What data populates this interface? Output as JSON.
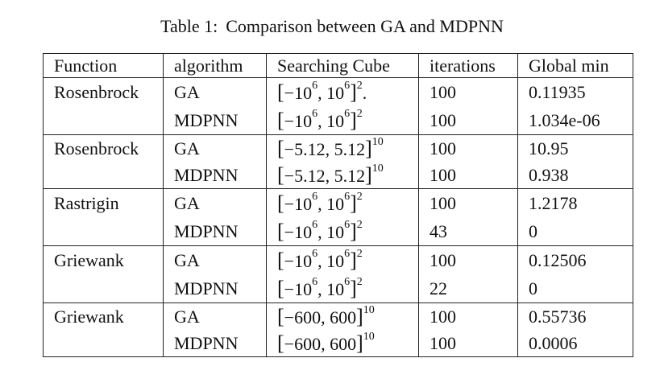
{
  "caption": {
    "number": "Table 1:",
    "text": "Comparison between GA and MDPNN"
  },
  "headers": [
    "Function",
    "algorithm",
    "Searching Cube",
    "iterations",
    "Global min"
  ],
  "rows": [
    {
      "function": "Rosenbrock",
      "algorithm": "GA",
      "cube_base": "−10",
      "cube_base_exp": "6",
      "cube_hi": "10",
      "cube_hi_exp": "6",
      "cube_power": "2",
      "cube_trail": ".",
      "iterations": "100",
      "global_min": "0.11935"
    },
    {
      "function": "",
      "algorithm": "MDPNN",
      "cube_base": "−10",
      "cube_base_exp": "6",
      "cube_hi": "10",
      "cube_hi_exp": "6",
      "cube_power": "2",
      "cube_trail": "",
      "iterations": "100",
      "global_min": "1.034e-06"
    },
    {
      "function": "Rosenbrock",
      "algorithm": "GA",
      "cube_interval": "−5.12, 5.12",
      "cube_power": "10",
      "iterations": "100",
      "global_min": "10.95"
    },
    {
      "function": "",
      "algorithm": "MDPNN",
      "cube_interval": "−5.12, 5.12",
      "cube_power": "10",
      "iterations": "100",
      "global_min": "0.938"
    },
    {
      "function": "Rastrigin",
      "algorithm": "GA",
      "cube_base": "−10",
      "cube_base_exp": "6",
      "cube_hi": "10",
      "cube_hi_exp": "6",
      "cube_power": "2",
      "cube_trail": "",
      "iterations": "100",
      "global_min": "1.2178"
    },
    {
      "function": "",
      "algorithm": "MDPNN",
      "cube_base": "−10",
      "cube_base_exp": "6",
      "cube_hi": "10",
      "cube_hi_exp": "6",
      "cube_power": "2",
      "cube_trail": "",
      "iterations": "43",
      "global_min": "0"
    },
    {
      "function": "Griewank",
      "algorithm": "GA",
      "cube_base": "−10",
      "cube_base_exp": "6",
      "cube_hi": "10",
      "cube_hi_exp": "6",
      "cube_power": "2",
      "cube_trail": "",
      "iterations": "100",
      "global_min": "0.12506"
    },
    {
      "function": "",
      "algorithm": "MDPNN",
      "cube_base": "−10",
      "cube_base_exp": "6",
      "cube_hi": "10",
      "cube_hi_exp": "6",
      "cube_power": "2",
      "cube_trail": "",
      "iterations": "22",
      "global_min": "0"
    },
    {
      "function": "Griewank",
      "algorithm": "GA",
      "cube_interval": "−600, 600",
      "cube_power": "10",
      "iterations": "100",
      "global_min": "0.55736"
    },
    {
      "function": "",
      "algorithm": "MDPNN",
      "cube_interval": "−600, 600",
      "cube_power": "10",
      "iterations": "100",
      "global_min": "0.0006"
    }
  ]
}
